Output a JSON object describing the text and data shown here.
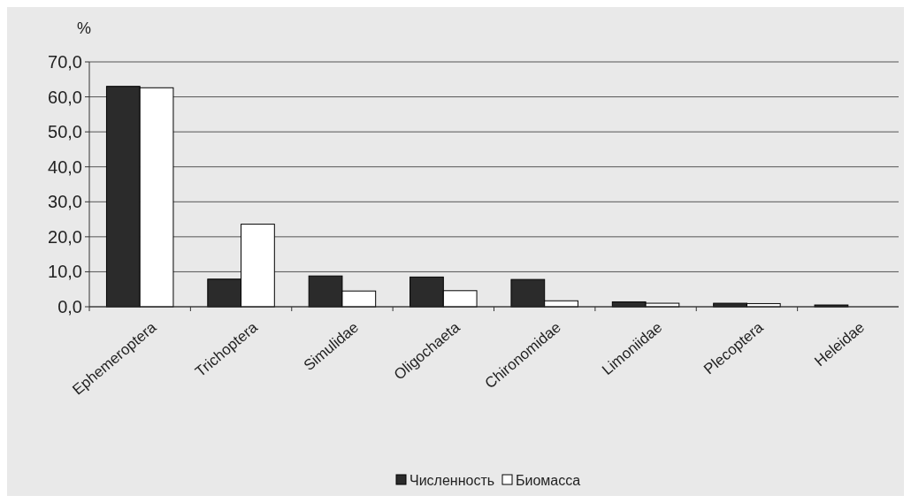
{
  "chart_data": {
    "type": "bar",
    "ylabel": "%",
    "categories": [
      "Ephemeroptera",
      "Trichoptera",
      "Simulidae",
      "Oligochaeta",
      "Chironomidae",
      "Limoniidae",
      "Plecoptera",
      "Heleidae"
    ],
    "series": [
      {
        "name": "Численность",
        "color": "#2b2b2b",
        "values": [
          63.0,
          7.9,
          8.8,
          8.5,
          7.8,
          1.4,
          1.0,
          0.5
        ]
      },
      {
        "name": "Биомасса",
        "color": "#ffffff",
        "values": [
          62.6,
          23.6,
          4.5,
          4.6,
          1.7,
          1.0,
          0.9,
          0
        ]
      }
    ],
    "ylim": [
      0,
      70
    ],
    "yticks": [
      {
        "value": 0,
        "label": "0,0"
      },
      {
        "value": 10,
        "label": "10,0"
      },
      {
        "value": 20,
        "label": "20,0"
      },
      {
        "value": 30,
        "label": "30,0"
      },
      {
        "value": 40,
        "label": "40,0"
      },
      {
        "value": 50,
        "label": "50,0"
      },
      {
        "value": 60,
        "label": "60,0"
      },
      {
        "value": 70,
        "label": "70,0"
      }
    ],
    "grid": "y",
    "legend": "bottom"
  }
}
